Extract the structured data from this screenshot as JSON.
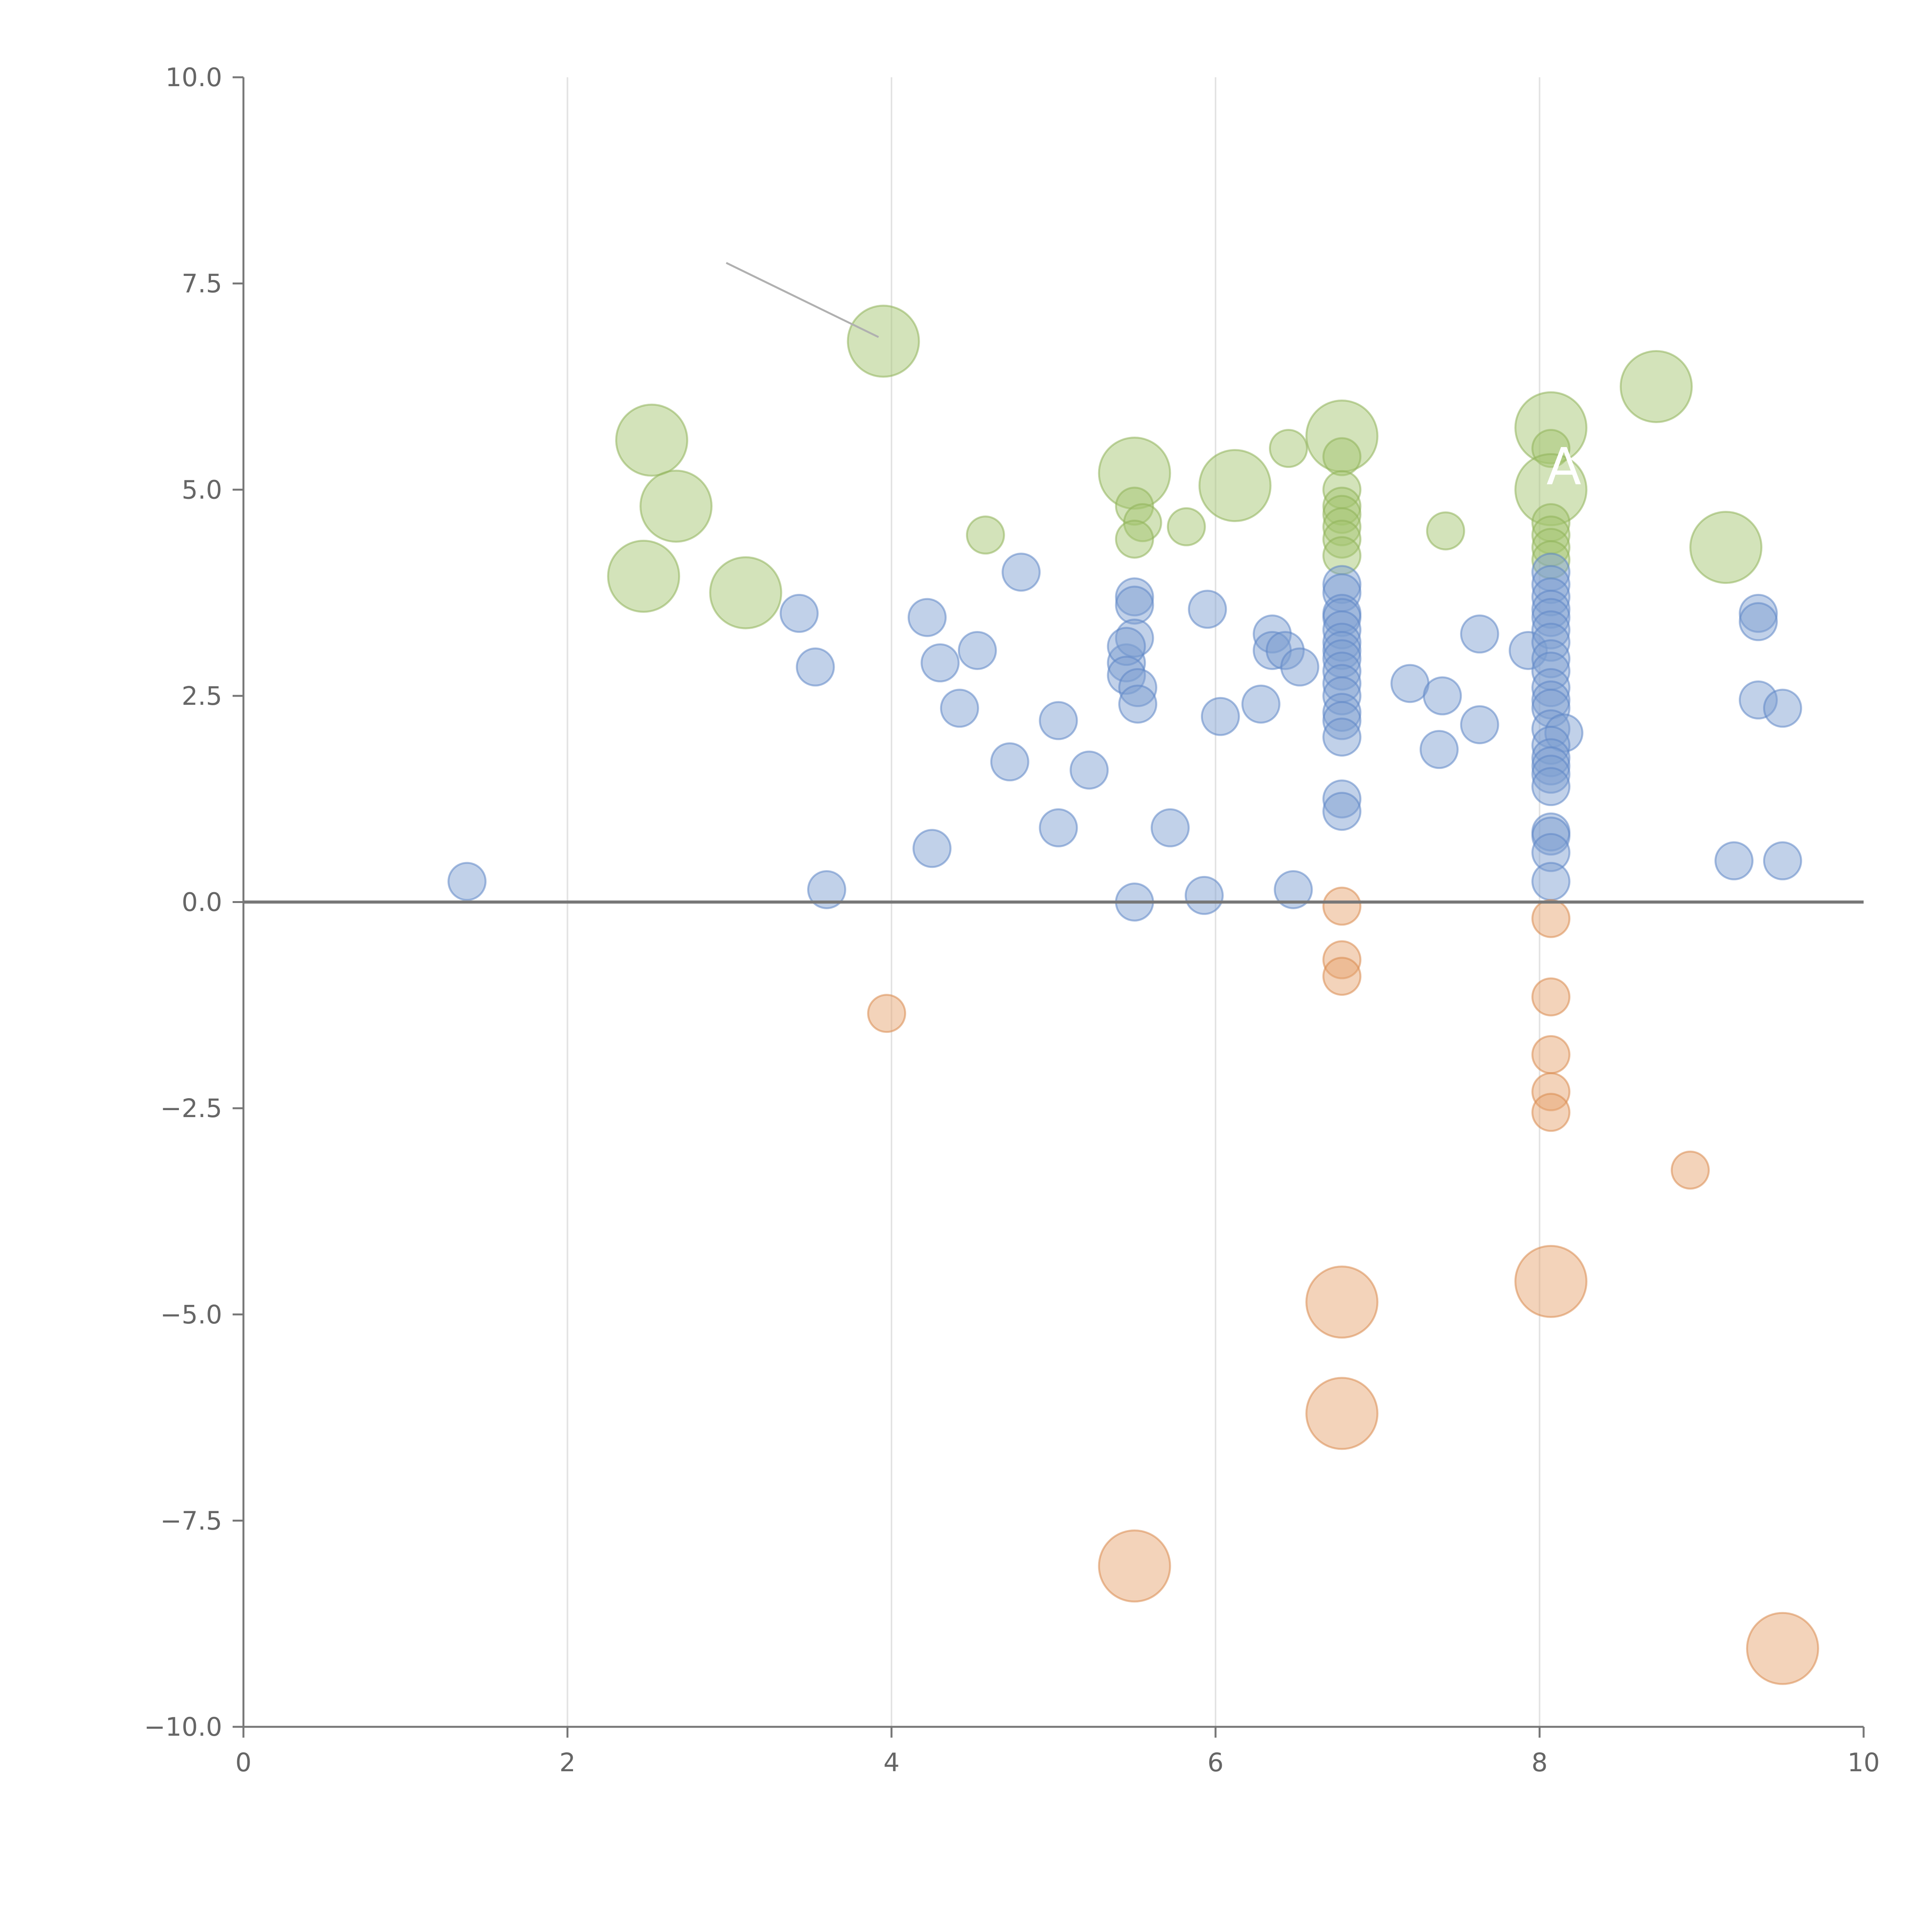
{
  "chart_data": {
    "type": "scatter",
    "title": "",
    "xlabel": "",
    "ylabel": "",
    "xlim": [
      0,
      10
    ],
    "ylim": [
      -10,
      10
    ],
    "x_ticks": [
      "0",
      "2",
      "4",
      "6",
      "8",
      "10"
    ],
    "x_tick_values": [
      0,
      2,
      4,
      6,
      8,
      10
    ],
    "y_ticks": [
      "10.0",
      "7.5",
      "5.0",
      "2.5",
      "0.0",
      "−2.5",
      "−5.0",
      "−7.5",
      "−10.0"
    ],
    "y_tick_values": [
      10,
      7.5,
      5,
      2.5,
      0,
      -2.5,
      -5,
      -7.5,
      -10
    ],
    "grid": "vertical",
    "zero_line": true,
    "annotation": {
      "text": "A",
      "x": 8.15,
      "y": 5.3
    },
    "leader_line": {
      "x": [
        2.98,
        3.92
      ],
      "y": [
        7.75,
        6.85
      ]
    },
    "series": [
      {
        "name": "green",
        "color": "#a3c46e",
        "stroke": "#8fb35a",
        "points": [
          {
            "x": 2.52,
            "y": 5.6,
            "s": 3
          },
          {
            "x": 2.67,
            "y": 4.8,
            "s": 3
          },
          {
            "x": 2.47,
            "y": 3.95,
            "s": 3
          },
          {
            "x": 3.1,
            "y": 3.75,
            "s": 3
          },
          {
            "x": 3.95,
            "y": 6.8,
            "s": 3
          },
          {
            "x": 4.58,
            "y": 4.45,
            "s": 1
          },
          {
            "x": 5.5,
            "y": 5.2,
            "s": 3
          },
          {
            "x": 5.5,
            "y": 4.8,
            "s": 1
          },
          {
            "x": 5.55,
            "y": 4.6,
            "s": 1
          },
          {
            "x": 5.5,
            "y": 4.4,
            "s": 1
          },
          {
            "x": 5.82,
            "y": 4.55,
            "s": 1
          },
          {
            "x": 6.12,
            "y": 5.05,
            "s": 3
          },
          {
            "x": 6.45,
            "y": 5.5,
            "s": 1
          },
          {
            "x": 6.78,
            "y": 5.65,
            "s": 3
          },
          {
            "x": 6.78,
            "y": 5.4,
            "s": 1
          },
          {
            "x": 6.78,
            "y": 5.0,
            "s": 1
          },
          {
            "x": 6.78,
            "y": 4.8,
            "s": 1
          },
          {
            "x": 6.78,
            "y": 4.7,
            "s": 1
          },
          {
            "x": 6.78,
            "y": 4.55,
            "s": 1
          },
          {
            "x": 6.78,
            "y": 4.4,
            "s": 1
          },
          {
            "x": 6.78,
            "y": 4.2,
            "s": 1
          },
          {
            "x": 7.42,
            "y": 4.5,
            "s": 1
          },
          {
            "x": 8.07,
            "y": 5.75,
            "s": 3
          },
          {
            "x": 8.07,
            "y": 5.5,
            "s": 1
          },
          {
            "x": 8.07,
            "y": 5.0,
            "s": 3
          },
          {
            "x": 8.07,
            "y": 4.6,
            "s": 1
          },
          {
            "x": 8.07,
            "y": 4.45,
            "s": 1
          },
          {
            "x": 8.07,
            "y": 4.3,
            "s": 1
          },
          {
            "x": 8.07,
            "y": 4.15,
            "s": 1
          },
          {
            "x": 8.72,
            "y": 6.25,
            "s": 3
          },
          {
            "x": 9.15,
            "y": 4.3,
            "s": 3
          }
        ]
      },
      {
        "name": "blue",
        "color": "#7d9fd1",
        "stroke": "#5f87c6",
        "points": [
          {
            "x": 1.38,
            "y": 0.25,
            "s": 1
          },
          {
            "x": 3.43,
            "y": 3.5,
            "s": 1
          },
          {
            "x": 3.53,
            "y": 2.85,
            "s": 1
          },
          {
            "x": 3.6,
            "y": 0.15,
            "s": 1
          },
          {
            "x": 4.22,
            "y": 3.45,
            "s": 1
          },
          {
            "x": 4.25,
            "y": 0.65,
            "s": 1
          },
          {
            "x": 4.3,
            "y": 2.9,
            "s": 1
          },
          {
            "x": 4.42,
            "y": 2.35,
            "s": 1
          },
          {
            "x": 4.53,
            "y": 3.05,
            "s": 1
          },
          {
            "x": 4.73,
            "y": 1.7,
            "s": 1
          },
          {
            "x": 4.8,
            "y": 4.0,
            "s": 1
          },
          {
            "x": 5.03,
            "y": 2.2,
            "s": 1
          },
          {
            "x": 5.03,
            "y": 0.9,
            "s": 1
          },
          {
            "x": 5.22,
            "y": 1.6,
            "s": 1
          },
          {
            "x": 5.45,
            "y": 2.9,
            "s": 1
          },
          {
            "x": 5.5,
            "y": 3.7,
            "s": 1
          },
          {
            "x": 5.5,
            "y": 3.6,
            "s": 1
          },
          {
            "x": 5.5,
            "y": 3.2,
            "s": 1
          },
          {
            "x": 5.45,
            "y": 3.1,
            "s": 1
          },
          {
            "x": 5.45,
            "y": 2.75,
            "s": 1
          },
          {
            "x": 5.52,
            "y": 2.6,
            "s": 1
          },
          {
            "x": 5.52,
            "y": 2.4,
            "s": 1
          },
          {
            "x": 5.5,
            "y": 0.0,
            "s": 1
          },
          {
            "x": 5.72,
            "y": 0.9,
            "s": 1
          },
          {
            "x": 5.93,
            "y": 0.08,
            "s": 1
          },
          {
            "x": 5.95,
            "y": 3.55,
            "s": 1
          },
          {
            "x": 6.03,
            "y": 2.25,
            "s": 1
          },
          {
            "x": 6.28,
            "y": 2.4,
            "s": 1
          },
          {
            "x": 6.35,
            "y": 3.25,
            "s": 1
          },
          {
            "x": 6.35,
            "y": 3.05,
            "s": 1
          },
          {
            "x": 6.43,
            "y": 3.05,
            "s": 1
          },
          {
            "x": 6.52,
            "y": 2.85,
            "s": 1
          },
          {
            "x": 6.48,
            "y": 0.15,
            "s": 1
          },
          {
            "x": 6.78,
            "y": 3.85,
            "s": 1
          },
          {
            "x": 6.78,
            "y": 3.75,
            "s": 1
          },
          {
            "x": 6.78,
            "y": 3.5,
            "s": 1
          },
          {
            "x": 6.78,
            "y": 3.45,
            "s": 1
          },
          {
            "x": 6.78,
            "y": 3.3,
            "s": 1
          },
          {
            "x": 6.78,
            "y": 3.15,
            "s": 1
          },
          {
            "x": 6.78,
            "y": 3.05,
            "s": 1
          },
          {
            "x": 6.78,
            "y": 2.95,
            "s": 1
          },
          {
            "x": 6.78,
            "y": 2.8,
            "s": 1
          },
          {
            "x": 6.78,
            "y": 2.65,
            "s": 1
          },
          {
            "x": 6.78,
            "y": 2.5,
            "s": 1
          },
          {
            "x": 6.78,
            "y": 2.3,
            "s": 1
          },
          {
            "x": 6.78,
            "y": 2.2,
            "s": 1
          },
          {
            "x": 6.78,
            "y": 2.0,
            "s": 1
          },
          {
            "x": 6.78,
            "y": 1.25,
            "s": 1
          },
          {
            "x": 6.78,
            "y": 1.1,
            "s": 1
          },
          {
            "x": 7.2,
            "y": 2.65,
            "s": 1
          },
          {
            "x": 7.38,
            "y": 1.85,
            "s": 1
          },
          {
            "x": 7.4,
            "y": 2.5,
            "s": 1
          },
          {
            "x": 7.63,
            "y": 3.25,
            "s": 1
          },
          {
            "x": 7.63,
            "y": 2.15,
            "s": 1
          },
          {
            "x": 7.93,
            "y": 3.05,
            "s": 1
          },
          {
            "x": 8.07,
            "y": 4.0,
            "s": 1
          },
          {
            "x": 8.07,
            "y": 3.85,
            "s": 1
          },
          {
            "x": 8.07,
            "y": 3.7,
            "s": 1
          },
          {
            "x": 8.07,
            "y": 3.55,
            "s": 1
          },
          {
            "x": 8.07,
            "y": 3.45,
            "s": 1
          },
          {
            "x": 8.07,
            "y": 3.3,
            "s": 1
          },
          {
            "x": 8.07,
            "y": 3.15,
            "s": 1
          },
          {
            "x": 8.07,
            "y": 2.95,
            "s": 1
          },
          {
            "x": 8.07,
            "y": 2.8,
            "s": 1
          },
          {
            "x": 8.07,
            "y": 2.6,
            "s": 1
          },
          {
            "x": 8.07,
            "y": 2.45,
            "s": 1
          },
          {
            "x": 8.07,
            "y": 2.35,
            "s": 1
          },
          {
            "x": 8.07,
            "y": 2.1,
            "s": 1
          },
          {
            "x": 8.15,
            "y": 2.05,
            "s": 1
          },
          {
            "x": 8.07,
            "y": 1.9,
            "s": 1
          },
          {
            "x": 8.07,
            "y": 1.75,
            "s": 1
          },
          {
            "x": 8.07,
            "y": 1.65,
            "s": 1
          },
          {
            "x": 8.07,
            "y": 1.55,
            "s": 1
          },
          {
            "x": 8.07,
            "y": 1.4,
            "s": 1
          },
          {
            "x": 8.07,
            "y": 0.85,
            "s": 1
          },
          {
            "x": 8.07,
            "y": 0.8,
            "s": 1
          },
          {
            "x": 8.07,
            "y": 0.6,
            "s": 1
          },
          {
            "x": 8.07,
            "y": 0.25,
            "s": 1
          },
          {
            "x": 9.2,
            "y": 0.5,
            "s": 1
          },
          {
            "x": 9.35,
            "y": 3.5,
            "s": 1
          },
          {
            "x": 9.35,
            "y": 3.4,
            "s": 1
          },
          {
            "x": 9.35,
            "y": 2.45,
            "s": 1
          },
          {
            "x": 9.5,
            "y": 2.35,
            "s": 1
          },
          {
            "x": 9.5,
            "y": 0.5,
            "s": 1
          }
        ]
      },
      {
        "name": "orange",
        "color": "#e6a36e",
        "stroke": "#d98a4e",
        "points": [
          {
            "x": 3.97,
            "y": -1.35,
            "s": 1
          },
          {
            "x": 5.5,
            "y": -8.05,
            "s": 3
          },
          {
            "x": 6.78,
            "y": -0.05,
            "s": 1
          },
          {
            "x": 6.78,
            "y": -0.7,
            "s": 1
          },
          {
            "x": 6.78,
            "y": -0.9,
            "s": 1
          },
          {
            "x": 6.78,
            "y": -4.85,
            "s": 3
          },
          {
            "x": 6.78,
            "y": -6.2,
            "s": 3
          },
          {
            "x": 8.07,
            "y": -0.2,
            "s": 1
          },
          {
            "x": 8.07,
            "y": -1.15,
            "s": 1
          },
          {
            "x": 8.07,
            "y": -1.85,
            "s": 1
          },
          {
            "x": 8.07,
            "y": -2.3,
            "s": 1
          },
          {
            "x": 8.07,
            "y": -2.55,
            "s": 1
          },
          {
            "x": 8.07,
            "y": -4.6,
            "s": 3
          },
          {
            "x": 8.93,
            "y": -3.25,
            "s": 1
          },
          {
            "x": 9.5,
            "y": -9.05,
            "s": 3
          }
        ]
      }
    ]
  }
}
